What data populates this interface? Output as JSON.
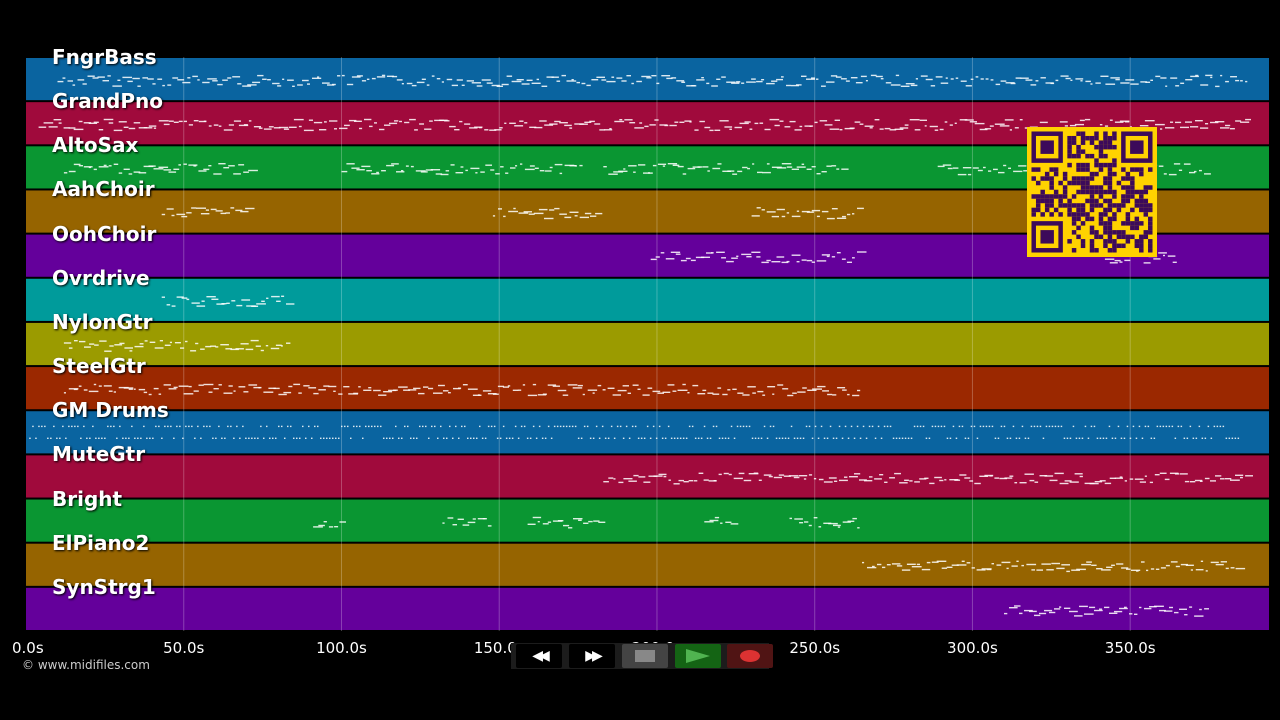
{
  "tracks": [
    {
      "name": "FngrBass",
      "color": "#0a64a0"
    },
    {
      "name": "GrandPno",
      "color": "#a00a3c"
    },
    {
      "name": "AltoSax",
      "color": "#0a9632"
    },
    {
      "name": "AahChoir",
      "color": "#966400"
    },
    {
      "name": "OohChoir",
      "color": "#64009b"
    },
    {
      "name": "Ovrdrive",
      "color": "#009b9b"
    },
    {
      "name": "NylonGtr",
      "color": "#9b9b00"
    },
    {
      "name": "SteelGtr",
      "color": "#9b2800"
    },
    {
      "name": "GM Drums",
      "color": "#0a64a0"
    },
    {
      "name": "MuteGtr",
      "color": "#a00a3c"
    },
    {
      "name": "Bright",
      "color": "#0a9632"
    },
    {
      "name": "ElPiano2",
      "color": "#966400"
    },
    {
      "name": "SynStrg1",
      "color": "#64009b"
    }
  ],
  "timeline": {
    "max_seconds": 394,
    "ticks": [
      {
        "value": 0,
        "label": "0.0s"
      },
      {
        "value": 50,
        "label": "50.0s"
      },
      {
        "value": 100,
        "label": "100.0s"
      },
      {
        "value": 150,
        "label": "150.0s"
      },
      {
        "value": 200,
        "label": "200.0s"
      },
      {
        "value": 250,
        "label": "250.0s"
      },
      {
        "value": 300,
        "label": "300.0s"
      },
      {
        "value": 350,
        "label": "350.0s"
      }
    ]
  },
  "note_segments": [
    {
      "track": 0,
      "start": 10,
      "end": 388
    },
    {
      "track": 1,
      "start": 4,
      "end": 388
    },
    {
      "track": 2,
      "start": 12,
      "end": 72
    },
    {
      "track": 2,
      "start": 100,
      "end": 177
    },
    {
      "track": 2,
      "start": 183,
      "end": 260
    },
    {
      "track": 2,
      "start": 289,
      "end": 375
    },
    {
      "track": 3,
      "start": 43,
      "end": 71
    },
    {
      "track": 3,
      "start": 148,
      "end": 182
    },
    {
      "track": 3,
      "start": 230,
      "end": 265
    },
    {
      "track": 4,
      "start": 198,
      "end": 265
    },
    {
      "track": 4,
      "start": 342,
      "end": 365
    },
    {
      "track": 5,
      "start": 43,
      "end": 84
    },
    {
      "track": 6,
      "start": 12,
      "end": 84
    },
    {
      "track": 7,
      "start": 12,
      "end": 265
    },
    {
      "track": 8,
      "start": 1,
      "end": 385
    },
    {
      "track": 9,
      "start": 183,
      "end": 388
    },
    {
      "track": 10,
      "start": 91,
      "end": 101
    },
    {
      "track": 10,
      "start": 132,
      "end": 148
    },
    {
      "track": 10,
      "start": 159,
      "end": 183
    },
    {
      "track": 10,
      "start": 215,
      "end": 225
    },
    {
      "track": 10,
      "start": 242,
      "end": 265
    },
    {
      "track": 11,
      "start": 265,
      "end": 385
    },
    {
      "track": 12,
      "start": 310,
      "end": 375
    }
  ],
  "copyright": "© www.midifiles.com",
  "transport": {
    "rewind": {
      "label": "◀◀",
      "color": "#000000"
    },
    "fast_forward": {
      "label": "▶▶",
      "color": "#000000"
    },
    "stop": {
      "color": "#444444",
      "icon_color": "#888888"
    },
    "play": {
      "color": "#146414",
      "icon_color": "#50b450"
    },
    "record": {
      "color": "#501414",
      "icon_color": "#dc3232"
    }
  },
  "qr_colors": {
    "bg": "#ffd200",
    "fg": "#3c0a5a"
  }
}
